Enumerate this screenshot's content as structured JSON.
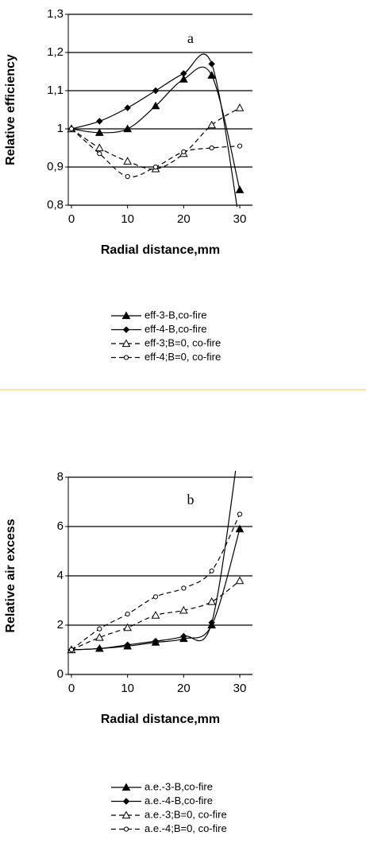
{
  "chart_data": [
    {
      "type": "line",
      "annotation": "a",
      "xlabel": "Radial distance,mm",
      "ylabel": "Relative efficiency",
      "x": [
        0,
        5,
        10,
        15,
        20,
        25,
        30
      ],
      "xlim": [
        0,
        30
      ],
      "xticks": [
        0,
        10,
        20,
        30
      ],
      "ylim": [
        0.8,
        1.3
      ],
      "yticks": [
        {
          "value": 0.8,
          "label": "0,8"
        },
        {
          "value": 0.9,
          "label": "0,9"
        },
        1,
        {
          "value": 1.1,
          "label": "1,1"
        },
        {
          "value": 1.2,
          "label": "1,2"
        },
        {
          "value": 1.3,
          "label": "1,3"
        }
      ],
      "grid": true,
      "series": [
        {
          "name": "eff-3-B,co-fire",
          "color": "#000000",
          "line_style": "solid",
          "marker": "triangle",
          "values": [
            1.0,
            0.99,
            1.0,
            1.06,
            1.13,
            1.14,
            0.84
          ]
        },
        {
          "name": "eff-4-B,co-fire",
          "color": "#000000",
          "line_style": "solid",
          "marker": "diamond",
          "values": [
            1.0,
            1.02,
            1.055,
            1.1,
            1.145,
            1.17,
            0.75
          ]
        },
        {
          "name": "eff-3;B=0, co-fire",
          "color": "#000000",
          "line_style": "dashed",
          "marker": "triangle-open",
          "values": [
            1.0,
            0.95,
            0.915,
            0.895,
            0.935,
            1.01,
            1.055
          ]
        },
        {
          "name": "eff-4;B=0, co-fire",
          "color": "#000000",
          "line_style": "dashed",
          "marker": "circle-open",
          "values": [
            1.0,
            0.935,
            0.875,
            0.9,
            0.94,
            0.95,
            0.955
          ]
        }
      ]
    },
    {
      "type": "line",
      "annotation": "b",
      "xlabel": "Radial distance,mm",
      "ylabel": "Relative air excess",
      "x": [
        0,
        5,
        10,
        15,
        20,
        25,
        30
      ],
      "xlim": [
        0,
        30
      ],
      "xticks": [
        0,
        10,
        20,
        30
      ],
      "ylim": [
        0,
        8
      ],
      "yticks": [
        0,
        2,
        4,
        6,
        8
      ],
      "grid": true,
      "series": [
        {
          "name": "a.e.-3-B,co-fire",
          "color": "#000000",
          "line_style": "solid",
          "marker": "triangle",
          "values": [
            1.0,
            1.05,
            1.15,
            1.3,
            1.45,
            2.0,
            5.9
          ]
        },
        {
          "name": "a.e.-4-B,co-fire",
          "color": "#000000",
          "line_style": "solid",
          "marker": "diamond",
          "values": [
            1.0,
            1.05,
            1.2,
            1.35,
            1.55,
            2.1,
            9.5
          ]
        },
        {
          "name": "a.e.-3;B=0, co-fire",
          "color": "#000000",
          "line_style": "dashed",
          "marker": "triangle-open",
          "values": [
            1.0,
            1.5,
            1.9,
            2.4,
            2.6,
            2.95,
            3.8
          ]
        },
        {
          "name": "a.e.-4;B=0, co-fire",
          "color": "#000000",
          "line_style": "dashed",
          "marker": "circle-open",
          "values": [
            1.0,
            1.85,
            2.45,
            3.15,
            3.5,
            4.2,
            6.5
          ]
        }
      ]
    }
  ]
}
